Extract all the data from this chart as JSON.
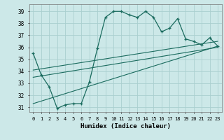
{
  "xlabel": "Humidex (Indice chaleur)",
  "bg_color": "#cce8e8",
  "grid_color": "#aacfcf",
  "line_color": "#1a6b5e",
  "x_values": [
    0,
    1,
    2,
    3,
    4,
    5,
    6,
    7,
    8,
    9,
    10,
    11,
    12,
    13,
    14,
    15,
    16,
    17,
    18,
    19,
    20,
    21,
    22,
    23
  ],
  "y_main": [
    35.5,
    33.7,
    32.7,
    30.9,
    31.2,
    31.3,
    31.3,
    33.1,
    35.9,
    38.5,
    39.0,
    39.0,
    38.7,
    38.5,
    39.0,
    38.5,
    37.3,
    37.6,
    38.4,
    36.7,
    36.5,
    36.2,
    36.8,
    36.1
  ],
  "reg_line1_x": [
    0,
    23
  ],
  "reg_line1_y": [
    34.1,
    36.5
  ],
  "reg_line2_x": [
    0,
    23
  ],
  "reg_line2_y": [
    33.5,
    36.0
  ],
  "reg_line3_x": [
    0,
    23
  ],
  "reg_line3_y": [
    31.3,
    36.1
  ],
  "xlim": [
    -0.5,
    23.5
  ],
  "ylim": [
    30.6,
    39.6
  ],
  "yticks": [
    31,
    32,
    33,
    34,
    35,
    36,
    37,
    38,
    39
  ]
}
